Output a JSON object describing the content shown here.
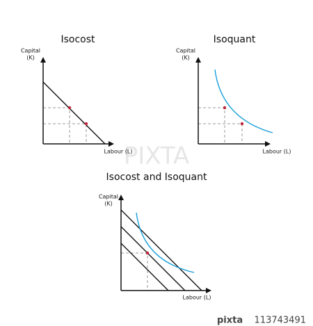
{
  "panels": [
    {
      "title": "Isocost",
      "y_label": [
        "Capital",
        "(K)"
      ],
      "x_label": "Labour (L)"
    },
    {
      "title": "Isoquant",
      "y_label": [
        "Capital",
        "(K)"
      ],
      "x_label": "Labour (L)"
    },
    {
      "title": "Isocost and Isoquant",
      "y_label": [
        "Capital",
        "(K)"
      ],
      "x_label": "Labour (L)"
    }
  ],
  "watermark": "PIXTA",
  "footer": {
    "brand": "pixta",
    "id": "113743491"
  }
}
